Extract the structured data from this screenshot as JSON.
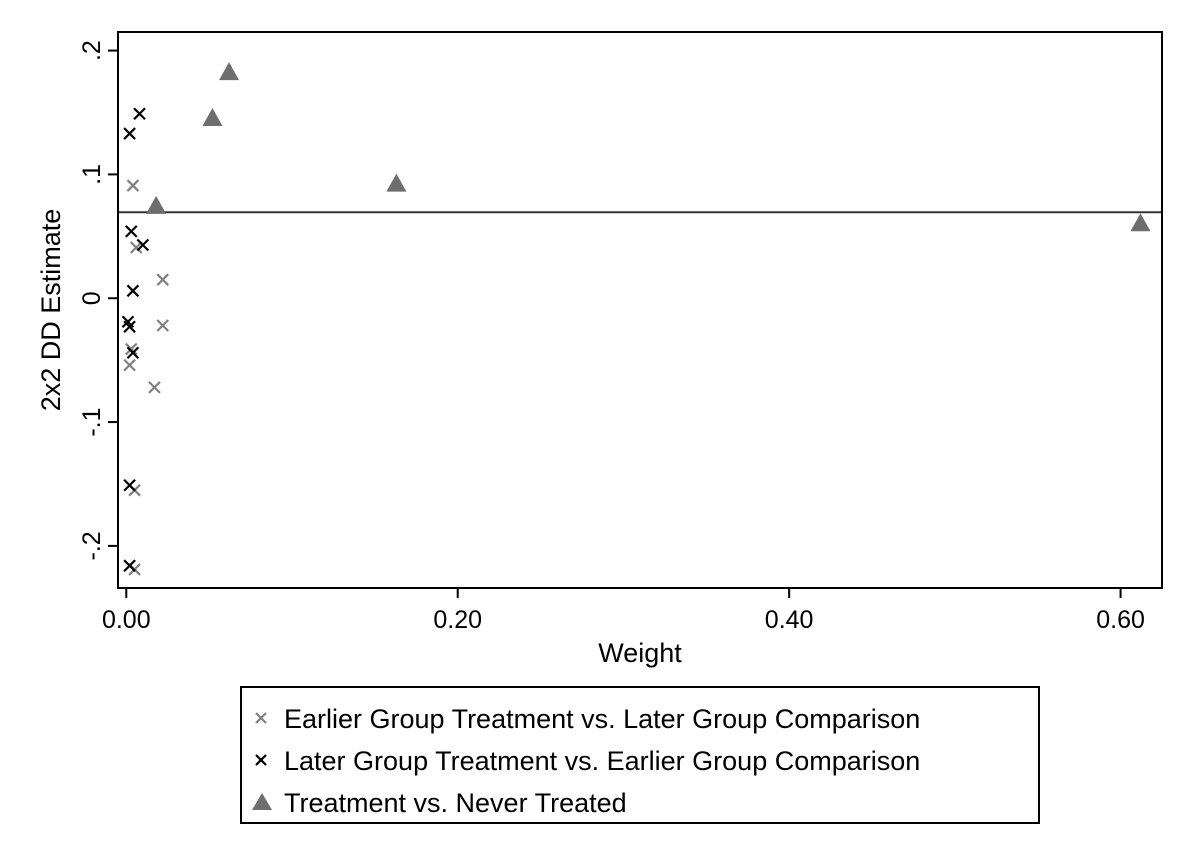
{
  "chart_data": {
    "type": "scatter",
    "xlabel": "Weight",
    "ylabel": "2x2 DD Estimate",
    "xlim": [
      -0.005,
      0.625
    ],
    "ylim": [
      -0.234,
      0.215
    ],
    "x_ticks": [
      0.0,
      0.2,
      0.4,
      0.6
    ],
    "x_tick_labels": [
      "0.00",
      "0.20",
      "0.40",
      "0.60"
    ],
    "y_ticks": [
      -0.2,
      -0.1,
      0.0,
      0.1,
      0.2
    ],
    "y_tick_labels": [
      "-.2",
      "-.1",
      "0",
      ".1",
      ".2"
    ],
    "grid": false,
    "legend_position": "bottom",
    "hline": {
      "y": 0.0694,
      "color": "#333333"
    },
    "series": [
      {
        "name": "Earlier Group Treatment vs. Later Group Comparison",
        "marker": "x",
        "color": "#808080",
        "points": [
          [
            0.004,
            0.091
          ],
          [
            0.006,
            0.041
          ],
          [
            0.022,
            0.015
          ],
          [
            0.022,
            -0.022
          ],
          [
            0.003,
            -0.041
          ],
          [
            0.002,
            -0.054
          ],
          [
            0.017,
            -0.072
          ],
          [
            0.005,
            -0.155
          ],
          [
            0.005,
            -0.219
          ]
        ]
      },
      {
        "name": "Later Group Treatment vs. Earlier Group Comparison",
        "marker": "x",
        "color": "#000000",
        "points": [
          [
            0.008,
            0.149
          ],
          [
            0.002,
            0.133
          ],
          [
            0.003,
            0.054
          ],
          [
            0.01,
            0.043
          ],
          [
            0.004,
            0.006
          ],
          [
            0.001,
            -0.019
          ],
          [
            0.002,
            -0.023
          ],
          [
            0.004,
            -0.044
          ],
          [
            0.002,
            -0.151
          ],
          [
            0.002,
            -0.216
          ]
        ]
      },
      {
        "name": "Treatment vs. Never Treated",
        "marker": "triangle",
        "color": "#6e6e6e",
        "points": [
          [
            0.062,
            0.183
          ],
          [
            0.052,
            0.146
          ],
          [
            0.163,
            0.093
          ],
          [
            0.018,
            0.075
          ],
          [
            0.612,
            0.061
          ]
        ]
      }
    ]
  }
}
